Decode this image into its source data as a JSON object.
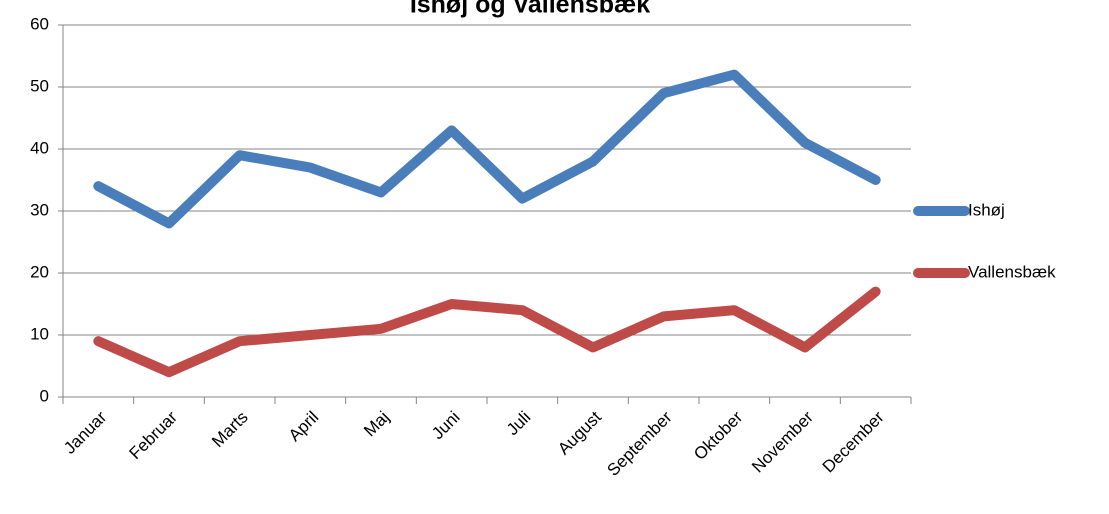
{
  "chart_data": {
    "type": "line",
    "title": "Ishøj og Vallensbæk",
    "categories": [
      "Januar",
      "Februar",
      "Marts",
      "April",
      "Maj",
      "Juni",
      "Juli",
      "August",
      "September",
      "Oktober",
      "November",
      "December"
    ],
    "series": [
      {
        "name": "Ishøj",
        "color": "#4a7ebb",
        "values": [
          34,
          28,
          39,
          37,
          33,
          43,
          32,
          38,
          49,
          52,
          41,
          35
        ]
      },
      {
        "name": "Vallensbæk",
        "color": "#be4b48",
        "values": [
          9,
          4,
          9,
          10,
          11,
          15,
          14,
          8,
          13,
          14,
          8,
          17
        ]
      }
    ],
    "ylim": [
      0,
      60
    ],
    "yticks": [
      0,
      10,
      20,
      30,
      40,
      50,
      60
    ],
    "grid": true,
    "legend": "right"
  }
}
